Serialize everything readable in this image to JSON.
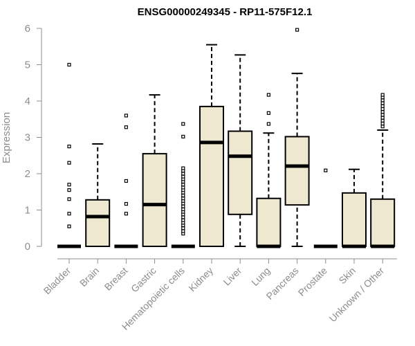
{
  "chart_data": {
    "type": "boxplot",
    "title": "ENSG00000249345 - RP11-575F12.1",
    "ylabel": "Expression",
    "xlabel": "",
    "ylim": [
      0,
      6
    ],
    "yticks": [
      0,
      1,
      2,
      3,
      4,
      5,
      6
    ],
    "grid": false,
    "box_color": "#efe8d0",
    "categories": [
      "Bladder",
      "Brain",
      "Breast",
      "Gastric",
      "Hematopoietic cells",
      "Kidney",
      "Liver",
      "Lung",
      "Pancreas",
      "Prostate",
      "Skin",
      "Unknown / Other"
    ],
    "boxes": [
      {
        "q1": 0,
        "median": 0,
        "q3": 0,
        "whisker_low": 0,
        "whisker_high": 0,
        "outliers": [
          0.55,
          0.9,
          1.3,
          1.55,
          1.7,
          2.3,
          2.75,
          5.0
        ]
      },
      {
        "q1": 0,
        "median": 0.82,
        "q3": 1.28,
        "whisker_low": 0,
        "whisker_high": 2.82,
        "outliers": []
      },
      {
        "q1": 0,
        "median": 0,
        "q3": 0,
        "whisker_low": 0,
        "whisker_high": 0,
        "outliers": [
          0.9,
          1.17,
          1.8,
          3.28,
          3.6
        ]
      },
      {
        "q1": 0,
        "median": 1.15,
        "q3": 2.55,
        "whisker_low": 0,
        "whisker_high": 4.17,
        "outliers": []
      },
      {
        "q1": 0,
        "median": 0,
        "q3": 0,
        "whisker_low": 0,
        "whisker_high": 0,
        "outliers": [
          0.35,
          0.42,
          0.5,
          0.58,
          0.65,
          0.72,
          0.8,
          0.88,
          0.95,
          1.02,
          1.1,
          1.18,
          1.25,
          1.32,
          1.4,
          1.48,
          1.55,
          1.62,
          1.7,
          1.78,
          1.85,
          1.92,
          2.0,
          2.08,
          2.15,
          3.02,
          3.37
        ]
      },
      {
        "q1": 0,
        "median": 2.86,
        "q3": 3.85,
        "whisker_low": 0,
        "whisker_high": 5.55,
        "outliers": []
      },
      {
        "q1": 0.88,
        "median": 2.48,
        "q3": 3.17,
        "whisker_low": 0,
        "whisker_high": 5.27,
        "outliers": []
      },
      {
        "q1": 0,
        "median": 0,
        "q3": 1.32,
        "whisker_low": 0,
        "whisker_high": 3.12,
        "outliers": [
          3.37,
          3.67,
          4.17
        ]
      },
      {
        "q1": 1.14,
        "median": 2.21,
        "q3": 3.02,
        "whisker_low": 0,
        "whisker_high": 4.76,
        "outliers": [
          5.96
        ]
      },
      {
        "q1": 0,
        "median": 0,
        "q3": 0,
        "whisker_low": 0,
        "whisker_high": 0,
        "outliers": [
          2.09
        ]
      },
      {
        "q1": 0,
        "median": 0,
        "q3": 1.47,
        "whisker_low": 0,
        "whisker_high": 2.12,
        "outliers": []
      },
      {
        "q1": 0,
        "median": 0,
        "q3": 1.3,
        "whisker_low": 0,
        "whisker_high": 3.2,
        "outliers": [
          3.3,
          3.38,
          3.46,
          3.54,
          3.62,
          3.7,
          3.78,
          3.86,
          3.94,
          4.02,
          4.1,
          4.17
        ]
      }
    ]
  }
}
